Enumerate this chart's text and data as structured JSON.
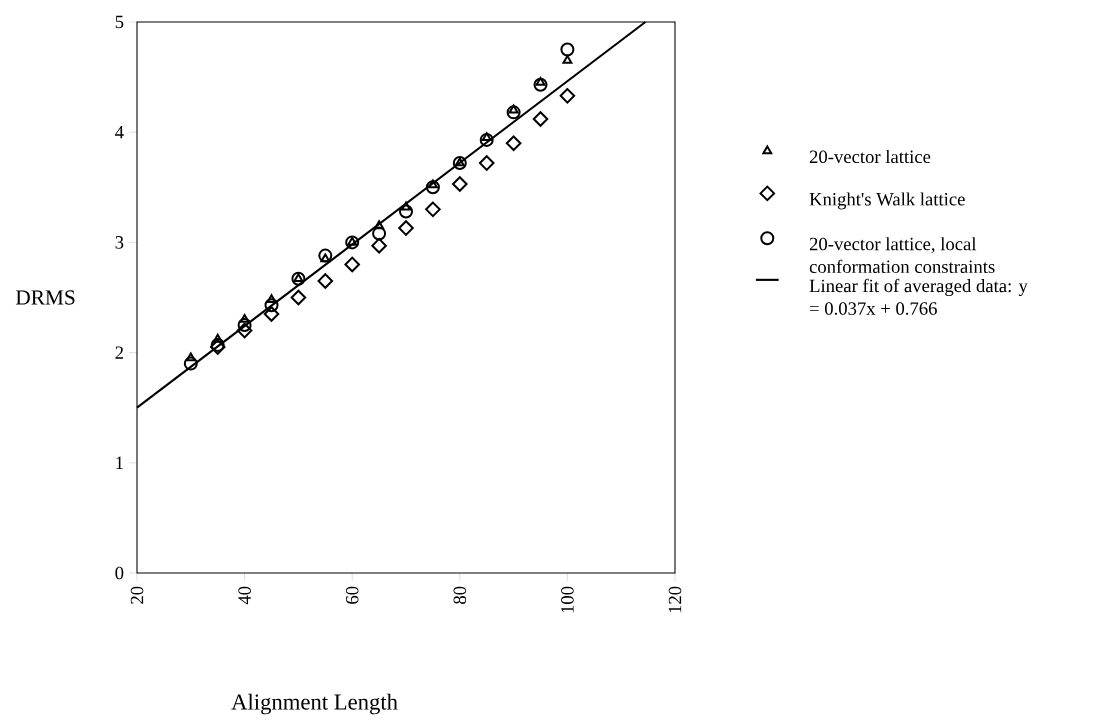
{
  "chart_data": {
    "type": "scatter",
    "xlabel": "Alignment Length",
    "ylabel": "DRMS",
    "x": [
      30,
      35,
      40,
      45,
      50,
      55,
      60,
      65,
      70,
      75,
      80,
      85,
      90,
      95,
      100
    ],
    "series": [
      {
        "name": "20-vector lattice",
        "color": "#000000",
        "marker": "triangle",
        "values": [
          1.95,
          2.12,
          2.3,
          2.48,
          2.67,
          2.85,
          3.0,
          3.15,
          3.32,
          3.52,
          3.72,
          3.95,
          4.2,
          4.45,
          4.65
        ]
      },
      {
        "name": "Knight's Walk lattice",
        "color": "#000000",
        "marker": "diamond",
        "values": [
          null,
          2.05,
          2.2,
          2.35,
          2.5,
          2.65,
          2.8,
          2.97,
          3.13,
          3.3,
          3.53,
          3.72,
          3.9,
          4.12,
          4.33
        ]
      },
      {
        "name": "20-vector lattice, local conformation constraints",
        "color": "#000000",
        "marker": "circle",
        "values": [
          1.9,
          2.07,
          2.25,
          2.43,
          2.67,
          2.88,
          3.0,
          3.08,
          3.28,
          3.5,
          3.72,
          3.93,
          4.18,
          4.43,
          4.75
        ]
      },
      {
        "name": "Linear fit of averaged data:    y = 0.037x + 0.766",
        "type": "line",
        "color": "#000000",
        "line_style": "solid",
        "marker": "none",
        "x": [
          20,
          114.5
        ],
        "values": [
          1.5,
          5.0
        ]
      }
    ],
    "xlim": [
      20,
      120
    ],
    "xticks": [
      20,
      40,
      60,
      80,
      100,
      120
    ],
    "ylim": [
      0,
      5
    ],
    "yticks": [
      0,
      1,
      2,
      3,
      4,
      5
    ],
    "grid": false,
    "legend": "right"
  }
}
